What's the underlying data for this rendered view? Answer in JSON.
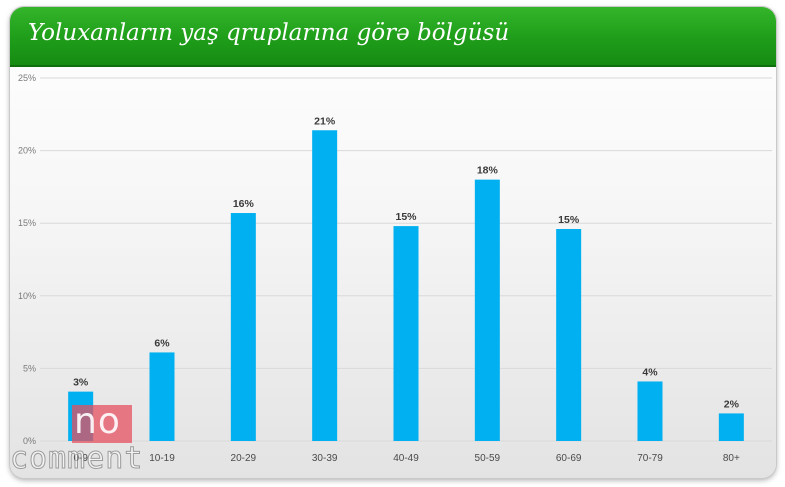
{
  "header": {
    "title": "Yoluxanların yaş qruplarına görə bölgüsü"
  },
  "colors": {
    "bar": "#00b0f0",
    "header": "#1f9d1a",
    "grid": "#d9d9d9"
  },
  "watermark": {
    "top_text": "no",
    "bottom_text": "comment"
  },
  "chart_data": {
    "type": "bar",
    "title": "Yoluxanların yaş qruplarına görə bölgüsü",
    "xlabel": "",
    "ylabel": "",
    "ylim": [
      0,
      25
    ],
    "y_ticks": [
      0,
      5,
      10,
      15,
      20,
      25
    ],
    "y_tick_labels": [
      "0%",
      "5%",
      "10%",
      "15%",
      "20%",
      "25%"
    ],
    "grid": true,
    "legend": "none",
    "categories": [
      "0-9",
      "10-19",
      "20-29",
      "30-39",
      "40-49",
      "50-59",
      "60-69",
      "70-79",
      "80+"
    ],
    "values": [
      3.4,
      6.1,
      15.7,
      21.4,
      14.8,
      18.0,
      14.6,
      4.1,
      1.9
    ],
    "data_labels": [
      "3%",
      "6%",
      "16%",
      "21%",
      "15%",
      "18%",
      "15%",
      "4%",
      "2%"
    ]
  }
}
